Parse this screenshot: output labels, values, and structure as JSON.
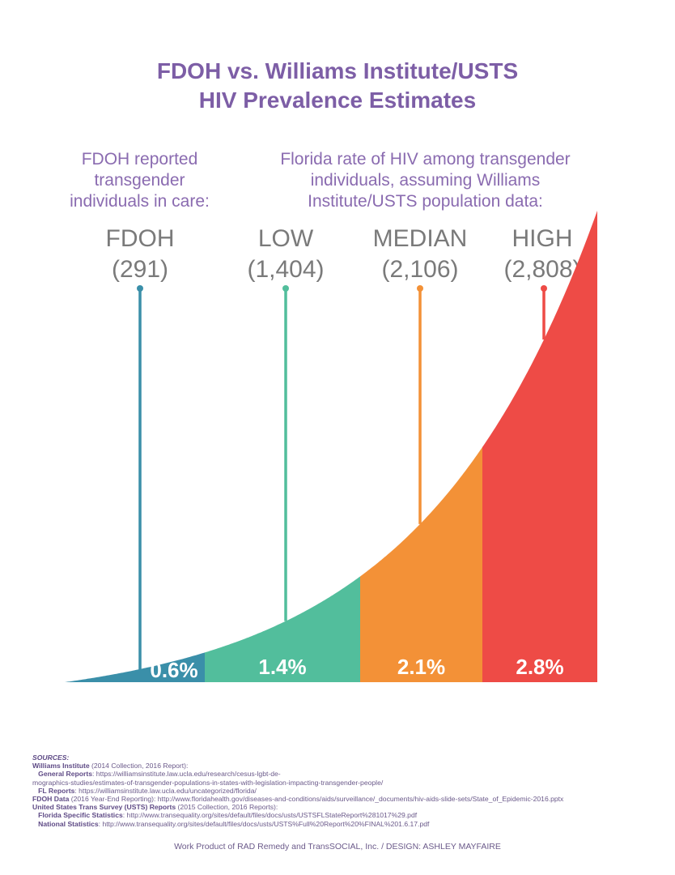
{
  "title_lines": [
    "FDOH vs. Williams Institute/USTS",
    "HIV Prevalence Estimates"
  ],
  "subheads": {
    "left": "FDOH reported transgender individuals in care:",
    "right": "Florida rate of HIV among transgender individuals, assuming Williams Institute/USTS population data:"
  },
  "chart_data": {
    "type": "area",
    "title": "FDOH vs. Williams Institute/USTS HIV Prevalence Estimates",
    "categories": [
      "FDOH",
      "LOW",
      "MEDIAN",
      "HIGH"
    ],
    "counts": [
      "(291)",
      "(1,404)",
      "(2,106)",
      "(2,808)"
    ],
    "rate_labels": [
      "0.6%",
      "1.4%",
      "2.1%",
      "2.8%"
    ],
    "values": [
      0.6,
      1.4,
      2.1,
      2.8
    ],
    "colors": [
      "#3a8fa9",
      "#52be9c",
      "#f39137",
      "#ee4b46"
    ]
  },
  "sources": {
    "heading": "SOURCES:",
    "lines": [
      {
        "bold": "Williams Institute",
        "text": " (2014 Collection, 2016 Report):"
      },
      {
        "bold": "   General Reports",
        "text": ": https://williamsinstitute.law.ucla.edu/research/cesus-lgbt-de-"
      },
      {
        "bold": "",
        "text": "mographics-studies/estimates-of-transgender-populations-in-states-with-legislation-impacting-transgender-people/"
      },
      {
        "bold": "   FL Reports",
        "text": ": https://williamsinstitute.law.ucla.edu/uncategorized/florida/"
      },
      {
        "bold": "FDOH Data",
        "text": " (2016 Year-End Reporting): http://www.floridahealth.gov/diseases-and-conditions/aids/surveillance/_documents/hiv-aids-slide-sets/State_of_Epidemic-2016.pptx"
      },
      {
        "bold": "United States Trans Survey (USTS) Reports",
        "text": " (2015 Collection, 2016 Reports):"
      },
      {
        "bold": "   Florida Specific Statistics",
        "text": ": http://www.transequality.org/sites/default/files/docs/usts/USTSFLStateReport%281017%29.pdf"
      },
      {
        "bold": "   National Statistics",
        "text": ": http://www.transequality.org/sites/default/files/docs/usts/USTS%Full%20Report%20%FINAL%201.6.17.pdf"
      }
    ]
  },
  "credit": "Work Product of RAD Remedy and TransSOCIAL, Inc. / DESIGN: ASHLEY MAYFAIRE"
}
